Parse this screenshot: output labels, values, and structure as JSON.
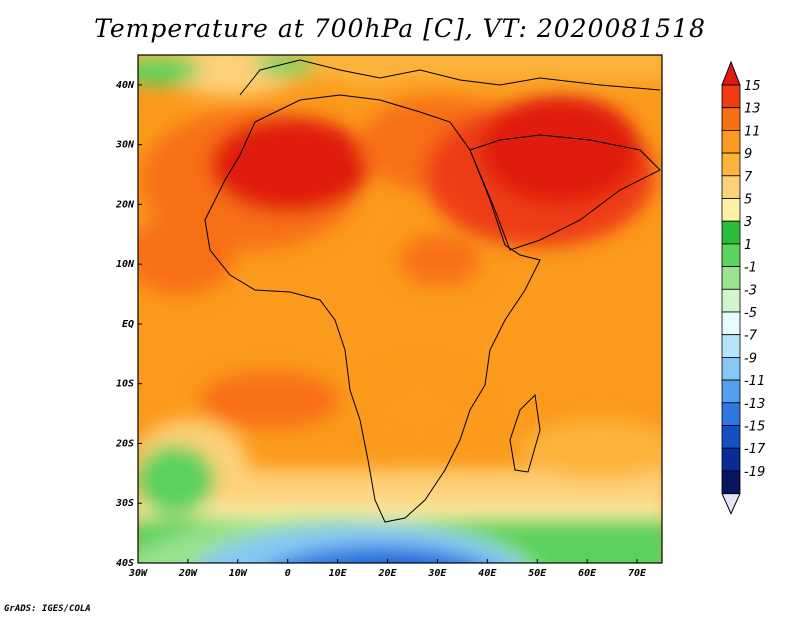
{
  "title": "Temperature at 700hPa [C], VT: 2020081518",
  "credit": "GrADS: IGES/COLA",
  "map": {
    "lon_range": [
      -30,
      75
    ],
    "lat_range": [
      -40,
      45
    ],
    "lat_ticks": [
      {
        "value": 40,
        "label": "40N"
      },
      {
        "value": 30,
        "label": "30N"
      },
      {
        "value": 20,
        "label": "20N"
      },
      {
        "value": 10,
        "label": "10N"
      },
      {
        "value": 0,
        "label": "EQ"
      },
      {
        "value": -10,
        "label": "10S"
      },
      {
        "value": -20,
        "label": "20S"
      },
      {
        "value": -30,
        "label": "30S"
      },
      {
        "value": -40,
        "label": "40S"
      }
    ],
    "lon_ticks": [
      {
        "value": -30,
        "label": "30W"
      },
      {
        "value": -20,
        "label": "20W"
      },
      {
        "value": -10,
        "label": "10W"
      },
      {
        "value": 0,
        "label": "0"
      },
      {
        "value": 10,
        "label": "10E"
      },
      {
        "value": 20,
        "label": "20E"
      },
      {
        "value": 30,
        "label": "30E"
      },
      {
        "value": 40,
        "label": "40E"
      },
      {
        "value": 50,
        "label": "50E"
      },
      {
        "value": 60,
        "label": "60E"
      },
      {
        "value": 70,
        "label": "70E"
      }
    ]
  },
  "colorbar": {
    "levels": [
      "15",
      "13",
      "11",
      "9",
      "7",
      "5",
      "3",
      "1",
      "-1",
      "-3",
      "-5",
      "-7",
      "-9",
      "-11",
      "-13",
      "-15",
      "-17",
      "-19"
    ],
    "colors": [
      "#e01a10",
      "#ee3c12",
      "#f86f14",
      "#fb9a1c",
      "#fdb43a",
      "#fdd17a",
      "#fff0a8",
      "#2bbd3a",
      "#5bd15e",
      "#99e38e",
      "#d2f5cc",
      "#e6fbfd",
      "#b7e4fb",
      "#85c8f4",
      "#559ef0",
      "#2f77e0",
      "#174fc3",
      "#0a2a98",
      "#0a1560",
      "#e4e4fb"
    ]
  }
}
